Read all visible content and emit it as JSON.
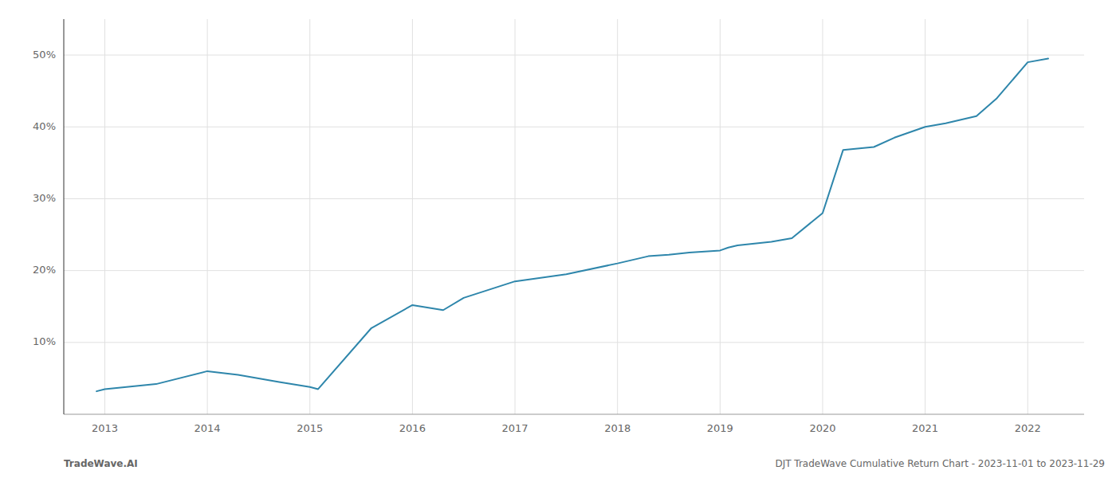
{
  "chart_data": {
    "type": "line",
    "x": [
      2012.92,
      2013.0,
      2013.5,
      2014.0,
      2014.3,
      2014.7,
      2015.0,
      2015.08,
      2015.6,
      2016.0,
      2016.3,
      2016.5,
      2017.0,
      2017.5,
      2018.0,
      2018.3,
      2018.5,
      2018.7,
      2019.0,
      2019.08,
      2019.17,
      2019.5,
      2019.7,
      2020.0,
      2020.2,
      2020.5,
      2020.7,
      2021.0,
      2021.2,
      2021.5,
      2021.7,
      2022.0,
      2022.2
    ],
    "values": [
      3.2,
      3.5,
      4.2,
      6.0,
      5.5,
      4.5,
      3.8,
      3.5,
      12.0,
      15.2,
      14.5,
      16.2,
      18.5,
      19.5,
      21.0,
      22.0,
      22.2,
      22.5,
      22.8,
      23.2,
      23.5,
      24.0,
      24.5,
      28.0,
      36.8,
      37.2,
      38.5,
      40.0,
      40.5,
      41.5,
      44.0,
      49.0,
      49.5
    ],
    "color": "#2E86AB",
    "xlim": [
      2012.6,
      2022.55
    ],
    "ylim": [
      0,
      55
    ],
    "xticks": [
      2013,
      2014,
      2015,
      2016,
      2017,
      2018,
      2019,
      2020,
      2021,
      2022
    ],
    "yticks": [
      {
        "value": 10,
        "label": "10%"
      },
      {
        "value": 20,
        "label": "20%"
      },
      {
        "value": 30,
        "label": "30%"
      },
      {
        "value": 40,
        "label": "40%"
      },
      {
        "value": 50,
        "label": "50%"
      }
    ],
    "grid": true,
    "annotations": [
      "TradeWave.AI",
      "DJT TradeWave Cumulative Return Chart - 2023-11-01 to 2023-11-29"
    ]
  }
}
